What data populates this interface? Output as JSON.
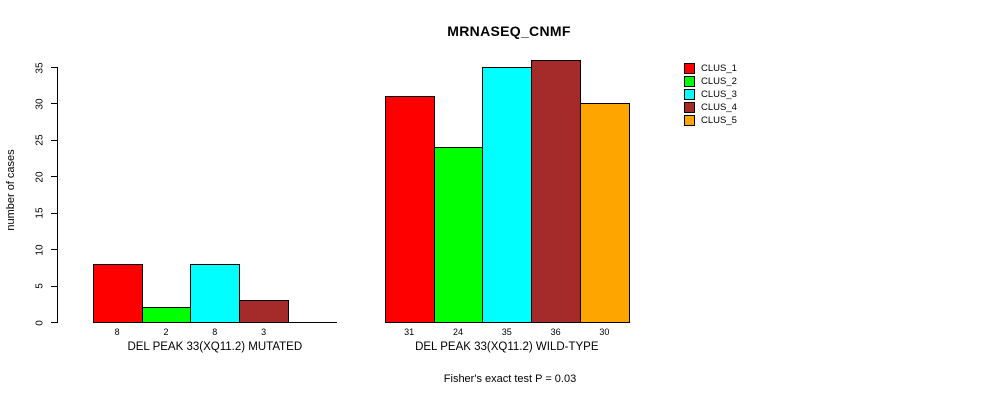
{
  "chart_data": {
    "type": "bar",
    "title": "MRNASEQ_CNMF",
    "ylabel": "number of cases",
    "xlabel": "",
    "ylim": [
      0,
      35
    ],
    "yticks": [
      0,
      5,
      10,
      15,
      20,
      25,
      30,
      35
    ],
    "grid": false,
    "legend_position": "right",
    "categories": [
      "DEL PEAK 33(XQ11.2) MUTATED",
      "DEL PEAK 33(XQ11.2) WILD-TYPE"
    ],
    "series": [
      {
        "name": "CLUS_1",
        "color": "#FF0000",
        "values": [
          8,
          31
        ]
      },
      {
        "name": "CLUS_2",
        "color": "#00FF00",
        "values": [
          2,
          24
        ]
      },
      {
        "name": "CLUS_3",
        "color": "#00FFFF",
        "values": [
          8,
          35
        ]
      },
      {
        "name": "CLUS_4",
        "color": "#A52A2A",
        "values": [
          3,
          36
        ]
      },
      {
        "name": "CLUS_5",
        "color": "#FFA500",
        "values": [
          0,
          30
        ]
      }
    ],
    "annotation": "Fisher's exact test P = 0.03"
  },
  "colors": {
    "background": "#FFFFFF",
    "axis": "#000000",
    "bar_border": "#000000",
    "text": "#000000"
  }
}
